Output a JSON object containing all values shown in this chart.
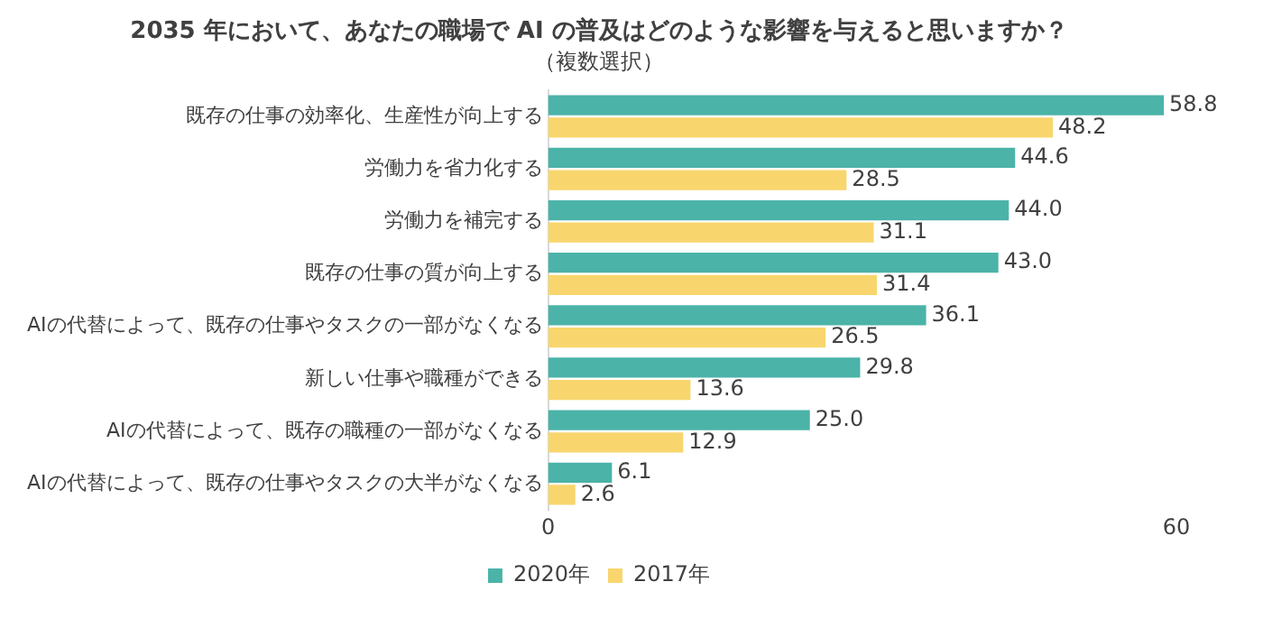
{
  "chart_data": {
    "type": "bar",
    "orientation": "horizontal",
    "title": "2035 年において、あなたの職場で AI の普及はどのような影響を与えると思いますか？",
    "subtitle": "（複数選択）",
    "categories": [
      "既存の仕事の効率化、生産性が向上する",
      "労働力を省力化する",
      "労働力を補完する",
      "既存の仕事の質が向上する",
      "AIの代替によって、既存の仕事やタスクの一部がなくなる",
      "新しい仕事や職種ができる",
      "AIの代替によって、既存の職種の一部がなくなる",
      "AIの代替によって、既存の仕事やタスクの大半がなくなる"
    ],
    "series": [
      {
        "name": "2020年",
        "color": "#4bb3a8",
        "values": [
          58.8,
          44.6,
          44.0,
          43.0,
          36.1,
          29.8,
          25.0,
          6.1
        ],
        "value_labels": [
          "58.8",
          "44.6",
          "44.0",
          "43.0",
          "36.1",
          "29.8",
          "25.0",
          "6.1"
        ]
      },
      {
        "name": "2017年",
        "color": "#f8d66d",
        "values": [
          48.2,
          28.5,
          31.1,
          31.4,
          26.5,
          13.6,
          12.9,
          2.6
        ],
        "value_labels": [
          "48.2",
          "28.5",
          "31.1",
          "31.4",
          "26.5",
          "13.6",
          "12.9",
          "2.6"
        ]
      }
    ],
    "xlim": [
      0,
      60
    ],
    "xticks": [
      0,
      60
    ],
    "legend": "bottom",
    "grid": false
  }
}
